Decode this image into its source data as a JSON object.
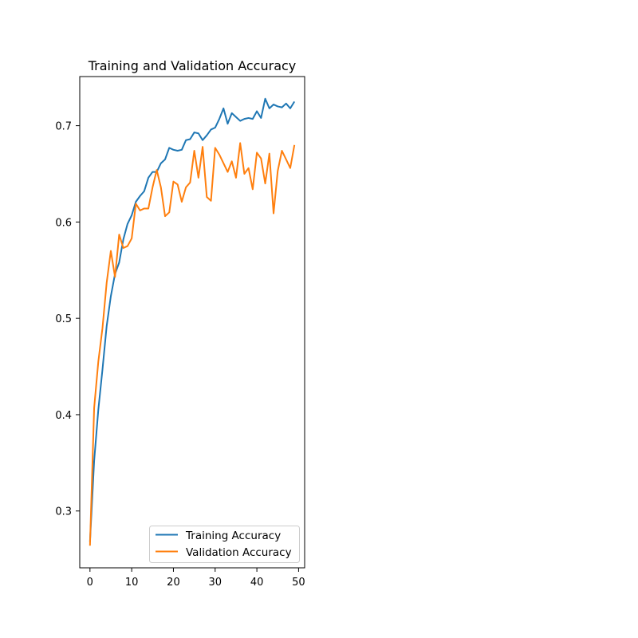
{
  "chart_data": {
    "type": "line",
    "title": "Training and Validation Accuracy",
    "xlabel": "",
    "ylabel": "",
    "xlim": [
      -2.45,
      51.45
    ],
    "ylim": [
      0.241,
      0.751
    ],
    "xticks": [
      0,
      10,
      20,
      30,
      40,
      50
    ],
    "yticks": [
      0.3,
      0.4,
      0.5,
      0.6,
      0.7
    ],
    "ytick_labels": [
      "0.3",
      "0.4",
      "0.5",
      "0.6",
      "0.7"
    ],
    "grid": false,
    "legend": "lower-right",
    "x": [
      0,
      1,
      2,
      3,
      4,
      5,
      6,
      7,
      8,
      9,
      10,
      11,
      12,
      13,
      14,
      15,
      16,
      17,
      18,
      19,
      20,
      21,
      22,
      23,
      24,
      25,
      26,
      27,
      28,
      29,
      30,
      31,
      32,
      33,
      34,
      35,
      36,
      37,
      38,
      39,
      40,
      41,
      42,
      43,
      44,
      45,
      46,
      47,
      48,
      49
    ],
    "series": [
      {
        "name": "Training Accuracy",
        "color": "#1f77b4",
        "values": [
          0.268,
          0.352,
          0.405,
          0.447,
          0.492,
          0.523,
          0.546,
          0.558,
          0.582,
          0.598,
          0.607,
          0.621,
          0.627,
          0.632,
          0.646,
          0.652,
          0.652,
          0.661,
          0.665,
          0.677,
          0.675,
          0.674,
          0.675,
          0.685,
          0.686,
          0.693,
          0.692,
          0.685,
          0.69,
          0.696,
          0.698,
          0.707,
          0.718,
          0.702,
          0.713,
          0.709,
          0.705,
          0.707,
          0.708,
          0.707,
          0.715,
          0.708,
          0.728,
          0.718,
          0.722,
          0.72,
          0.719,
          0.723,
          0.718,
          0.725
        ]
      },
      {
        "name": "Validation Accuracy",
        "color": "#ff7f0e",
        "values": [
          0.264,
          0.407,
          0.455,
          0.49,
          0.537,
          0.57,
          0.543,
          0.587,
          0.573,
          0.575,
          0.583,
          0.619,
          0.612,
          0.614,
          0.614,
          0.636,
          0.654,
          0.636,
          0.606,
          0.61,
          0.642,
          0.639,
          0.621,
          0.636,
          0.641,
          0.674,
          0.646,
          0.678,
          0.626,
          0.622,
          0.677,
          0.67,
          0.661,
          0.652,
          0.663,
          0.646,
          0.682,
          0.65,
          0.656,
          0.634,
          0.672,
          0.666,
          0.64,
          0.671,
          0.609,
          0.653,
          0.674,
          0.665,
          0.656,
          0.68
        ]
      }
    ]
  }
}
